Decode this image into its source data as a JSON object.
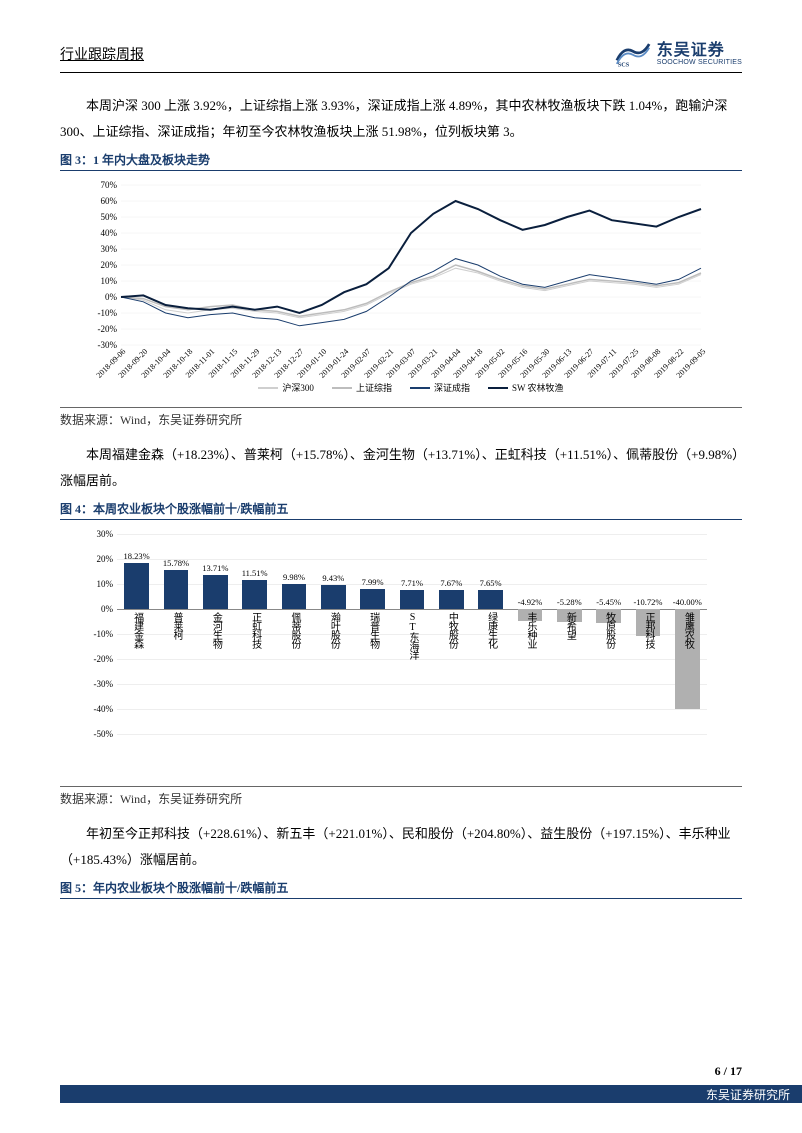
{
  "header": {
    "title": "行业跟踪周报"
  },
  "logo": {
    "cn": "东吴证券",
    "en": "SOOCHOW SECURITIES"
  },
  "para1": "本周沪深 300 上涨 3.92%，上证综指上涨 3.93%，深证成指上涨 4.89%，其中农林牧渔板块下跌 1.04%，跑输沪深 300、上证综指、深证成指；年初至今农林牧渔板块上涨 51.98%，位列板块第 3。",
  "fig3": {
    "title": "图 3：1 年内大盘及板块走势",
    "source": "数据来源：Wind，东吴证券研究所",
    "chart": {
      "type": "line",
      "ylim": [
        -30,
        70
      ],
      "ytick_step": 10,
      "xticks": [
        "2018-09-06",
        "2018-09-20",
        "2018-10-04",
        "2018-10-18",
        "2018-11-01",
        "2018-11-15",
        "2018-11-29",
        "2018-12-13",
        "2018-12-27",
        "2019-01-10",
        "2019-01-24",
        "2019-02-07",
        "2019-02-21",
        "2019-03-07",
        "2019-03-21",
        "2019-04-04",
        "2019-04-18",
        "2019-05-02",
        "2019-05-16",
        "2019-05-30",
        "2019-06-13",
        "2019-06-27",
        "2019-07-11",
        "2019-07-25",
        "2019-08-08",
        "2019-08-22",
        "2019-09-05"
      ],
      "series": [
        {
          "name": "沪深300",
          "color": "#cfcfcf",
          "width": 1,
          "data": [
            0,
            -2,
            -8,
            -10,
            -8,
            -7,
            -9,
            -10,
            -13,
            -11,
            -9,
            -5,
            2,
            8,
            12,
            18,
            15,
            10,
            6,
            4,
            7,
            10,
            9,
            8,
            6,
            8,
            14
          ]
        },
        {
          "name": "上证综指",
          "color": "#bdbdbd",
          "width": 1.5,
          "data": [
            0,
            -1,
            -6,
            -8,
            -6,
            -5,
            -8,
            -9,
            -12,
            -10,
            -8,
            -4,
            3,
            9,
            13,
            20,
            16,
            11,
            7,
            5,
            8,
            11,
            10,
            9,
            7,
            9,
            15
          ]
        },
        {
          "name": "深证成指",
          "color": "#1a3d6d",
          "width": 1,
          "data": [
            0,
            -3,
            -10,
            -13,
            -11,
            -10,
            -13,
            -14,
            -18,
            -16,
            -14,
            -9,
            0,
            10,
            16,
            24,
            20,
            13,
            8,
            6,
            10,
            14,
            12,
            10,
            8,
            11,
            18
          ]
        },
        {
          "name": "SW 农林牧渔",
          "color": "#0a1f3d",
          "width": 2,
          "data": [
            0,
            1,
            -5,
            -7,
            -8,
            -6,
            -8,
            -6,
            -10,
            -5,
            3,
            8,
            18,
            40,
            52,
            60,
            55,
            48,
            42,
            45,
            50,
            54,
            48,
            46,
            44,
            50,
            55
          ]
        }
      ],
      "legend_colors": {
        "沪深300": "#cfcfcf",
        "上证综指": "#bdbdbd",
        "深证成指": "#1a3d6d",
        "SW 农林牧渔": "#0a1f3d"
      },
      "grid_color": "#eeeeee"
    }
  },
  "para2": "本周福建金森（+18.23%）、普莱柯（+15.78%）、金河生物（+13.71%）、正虹科技（+11.51%）、佩蒂股份（+9.98%）涨幅居前。",
  "fig4": {
    "title": "图 4：本周农业板块个股涨幅前十/跌幅前五",
    "source": "数据来源：Wind，东吴证券研究所",
    "chart": {
      "type": "bar",
      "ylim": [
        -50,
        30
      ],
      "ytick_step": 10,
      "pos_color": "#1a3d6d",
      "neg_color": "#b0b0b0",
      "categories": [
        "福建金森",
        "普莱柯",
        "金河生物",
        "正虹科技",
        "佩蒂股份",
        "瀚叶股份",
        "瑞普生物",
        "ST东海洋",
        "中牧股份",
        "绿康生化",
        "丰乐种业",
        "新希望",
        "牧原股份",
        "正邦科技",
        "雏鹰农牧"
      ],
      "values": [
        18.23,
        15.78,
        13.71,
        11.51,
        9.98,
        9.43,
        7.99,
        7.71,
        7.67,
        7.65,
        -4.92,
        -5.28,
        -5.45,
        -10.72,
        -40.0
      ],
      "value_labels": [
        "18.23%",
        "15.78%",
        "13.71%",
        "11.51%",
        "9.98%",
        "9.43%",
        "7.99%",
        "7.71%",
        "7.67%",
        "7.65%",
        "-4.92%",
        "-5.28%",
        "-5.45%",
        "-10.72%",
        "-40.00%"
      ]
    }
  },
  "para3": "年初至今正邦科技（+228.61%）、新五丰（+221.01%）、民和股份（+204.80%）、益生股份（+197.15%）、丰乐种业（+185.43%）涨幅居前。",
  "fig5": {
    "title": "图 5：年内农业板块个股涨幅前十/跌幅前五"
  },
  "footer": {
    "page": "6 / 17",
    "org": "东吴证券研究所"
  }
}
